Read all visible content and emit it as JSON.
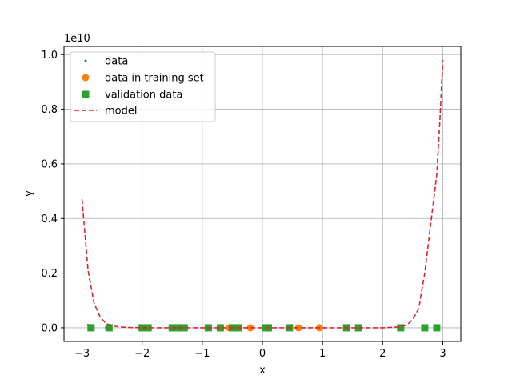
{
  "chart_data": {
    "type": "scatter",
    "title": "",
    "xlabel": "x",
    "ylabel": "y",
    "y_scale_label": "1e10",
    "xlim": [
      -3.3,
      3.3
    ],
    "ylim": [
      -0.05,
      1.03
    ],
    "x_ticks": [
      -3,
      -2,
      -1,
      0,
      1,
      2,
      3
    ],
    "x_tick_labels": [
      "−3",
      "−2",
      "−1",
      "0",
      "1",
      "2",
      "3"
    ],
    "y_ticks": [
      0.0,
      0.2,
      0.4,
      0.6,
      0.8,
      1.0
    ],
    "y_tick_labels": [
      "0.0",
      "0.2",
      "0.4",
      "0.6",
      "0.8",
      "1.0"
    ],
    "grid": true,
    "legend_position": "upper-left",
    "series": [
      {
        "name": "data",
        "kind": "points",
        "marker": "dot",
        "color": "#1f77b4",
        "x": [
          -2.9,
          -2.85,
          -2.6,
          -2.55,
          -2.0,
          -1.95,
          -1.9,
          -1.5,
          -1.4,
          -1.3,
          -0.9,
          -0.7,
          -0.6,
          -0.5,
          -0.45,
          -0.4,
          -0.2,
          0.05,
          0.1,
          0.45,
          0.6,
          0.95,
          1.4,
          1.6,
          2.3,
          2.7,
          2.9
        ],
        "y": [
          0.01,
          0.0,
          0.0,
          0.0,
          0.0,
          0.0,
          0.0,
          0.0,
          0.0,
          0.0,
          0.0,
          0.0,
          0.0,
          0.0,
          0.0,
          0.0,
          0.0,
          0.0,
          0.0,
          0.0,
          0.0,
          0.0,
          0.0,
          0.0,
          0.0,
          0.0,
          0.0
        ]
      },
      {
        "name": "data in training set",
        "kind": "points",
        "marker": "circle",
        "color": "#ff7f0e",
        "x": [
          -0.55,
          -0.2,
          0.6,
          0.95
        ],
        "y": [
          0.0,
          0.0,
          0.0,
          0.0
        ]
      },
      {
        "name": "validation data",
        "kind": "points",
        "marker": "square",
        "color": "#2ca02c",
        "x": [
          -2.85,
          -2.55,
          -2.0,
          -1.9,
          -1.5,
          -1.4,
          -1.3,
          -0.9,
          -0.7,
          -0.5,
          -0.4,
          0.05,
          0.1,
          0.45,
          1.4,
          1.6,
          2.3,
          2.7,
          2.9
        ],
        "y": [
          0.0,
          0.0,
          0.0,
          0.0,
          0.0,
          0.0,
          0.0,
          0.0,
          0.0,
          0.0,
          0.0,
          0.0,
          0.0,
          0.0,
          0.0,
          0.0,
          0.0,
          0.0,
          0.0
        ]
      },
      {
        "name": "model",
        "kind": "line",
        "style": "dashed",
        "color": "#d62728",
        "x": [
          -3.0,
          -2.9,
          -2.8,
          -2.7,
          -2.6,
          -2.5,
          -2.4,
          -2.3,
          -2.2,
          -2.0,
          -1.5,
          -1.0,
          0.0,
          1.0,
          1.5,
          2.0,
          2.2,
          2.3,
          2.4,
          2.5,
          2.6,
          2.7,
          2.8,
          2.9,
          2.95,
          3.0
        ],
        "y": [
          0.47,
          0.21,
          0.09,
          0.04,
          0.015,
          0.008,
          0.004,
          0.002,
          0.001,
          0.0,
          0.0,
          0.0,
          0.0,
          0.0,
          0.0,
          0.0,
          0.002,
          0.004,
          0.01,
          0.03,
          0.07,
          0.2,
          0.38,
          0.56,
          0.75,
          0.98
        ]
      }
    ]
  }
}
